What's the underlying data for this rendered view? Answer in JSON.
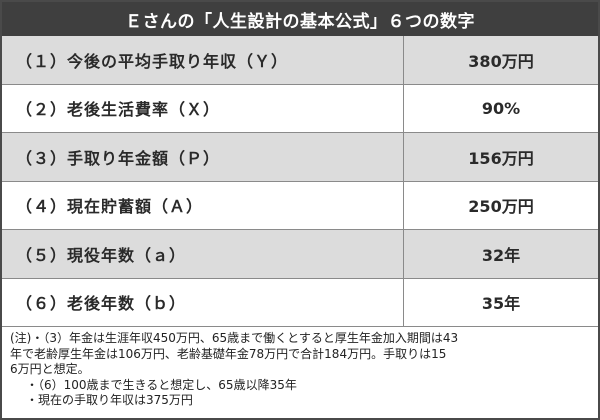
{
  "title": "Ｅさんの「人生設計の基本公式」６つの数字",
  "rows": [
    {
      "label": "（１）今後の平均手取り年収（Ｙ）",
      "value": "380万円"
    },
    {
      "label": "（２）老後生活費率（Ｘ）",
      "value": "90%"
    },
    {
      "label": "（３）手取り年金額（Ｐ）",
      "value": "156万円"
    },
    {
      "label": "（４）現在貯蓄額（Ａ）",
      "value": "250万円"
    },
    {
      "label": "（５）現役年数（ａ）",
      "value": "32年"
    },
    {
      "label": "（６）老後年数（ｂ）",
      "value": "35年"
    }
  ],
  "notes": {
    "line1": "(注)・（3）年金は生涯年収450万円、65歳まで働くとすると厚生年金加入期間は43",
    "line2": "年で老齢厚生年金は106万円、老齢基礎年金78万円で合計184万円。手取りは15",
    "line3": "6万円と想定。",
    "line4": "・（6）100歳まで生きると想定し、65歳以降35年",
    "line5": "・現在の手取り年収は375万円"
  },
  "colors": {
    "title_bg": "#3f3f3f",
    "shaded_row": "#dcdcdc",
    "border": "#8a8a8a"
  }
}
